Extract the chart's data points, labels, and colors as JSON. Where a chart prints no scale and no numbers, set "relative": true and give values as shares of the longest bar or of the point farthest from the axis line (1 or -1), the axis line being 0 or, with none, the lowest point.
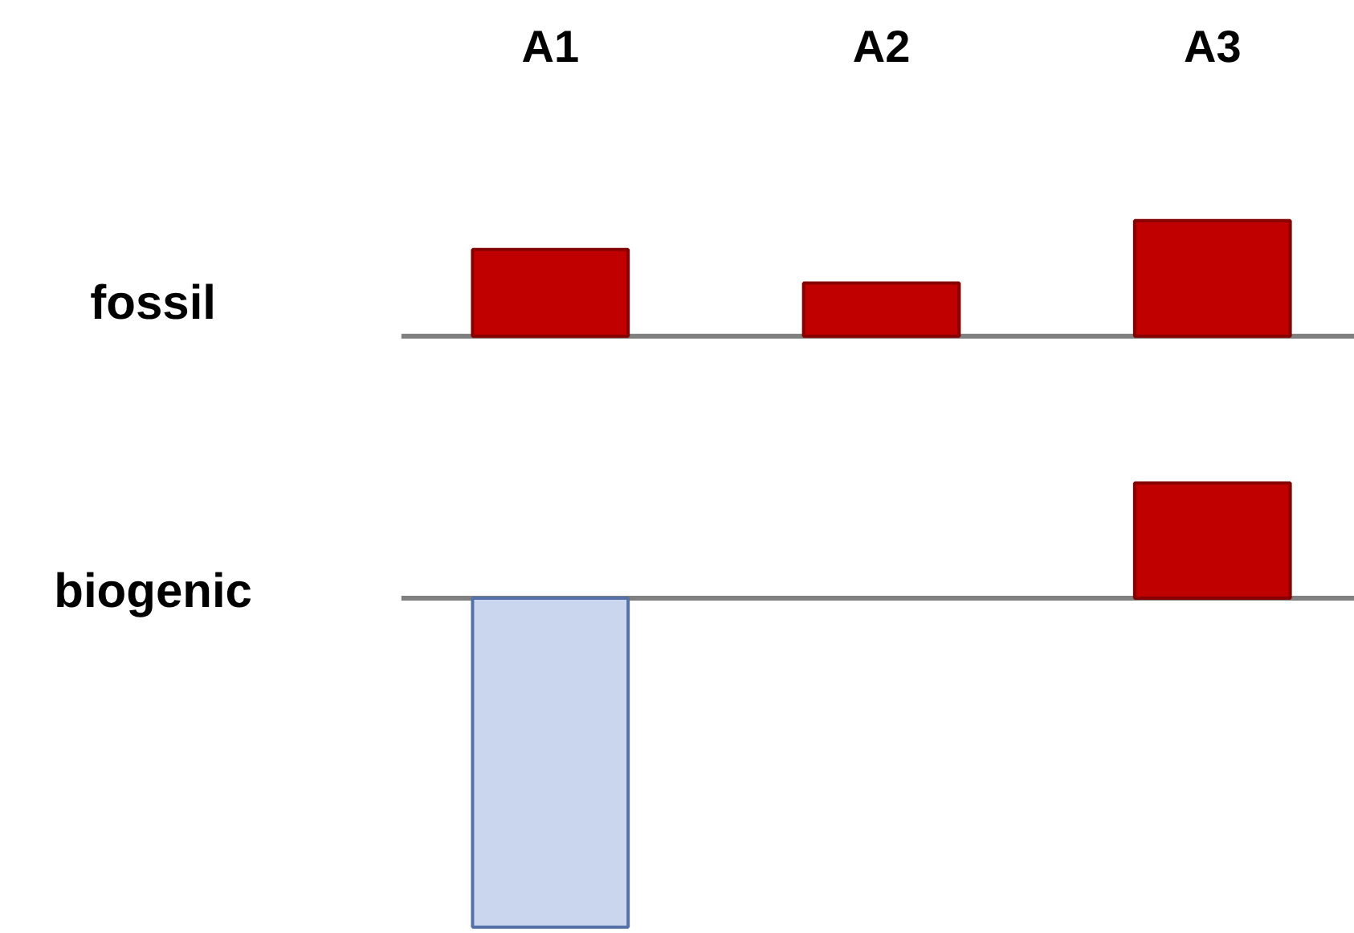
{
  "chart_data": [
    {
      "type": "bar",
      "ylabel": "fossil",
      "categories": [
        "A1",
        "A2",
        "A3"
      ],
      "relative": true,
      "tick_labels": "x",
      "values": [
        0.75,
        0.46,
        1
      ],
      "colors": [
        "#c00000",
        "#c00000",
        "#c00000"
      ]
    },
    {
      "type": "bar",
      "ylabel": "biogenic",
      "categories": [
        null,
        null,
        null
      ],
      "relative": true,
      "tick_labels": false,
      "values": [
        -1,
        null,
        0.35
      ],
      "colors": [
        "#c9d6ee",
        "#c00000",
        "#c00000"
      ]
    }
  ]
}
